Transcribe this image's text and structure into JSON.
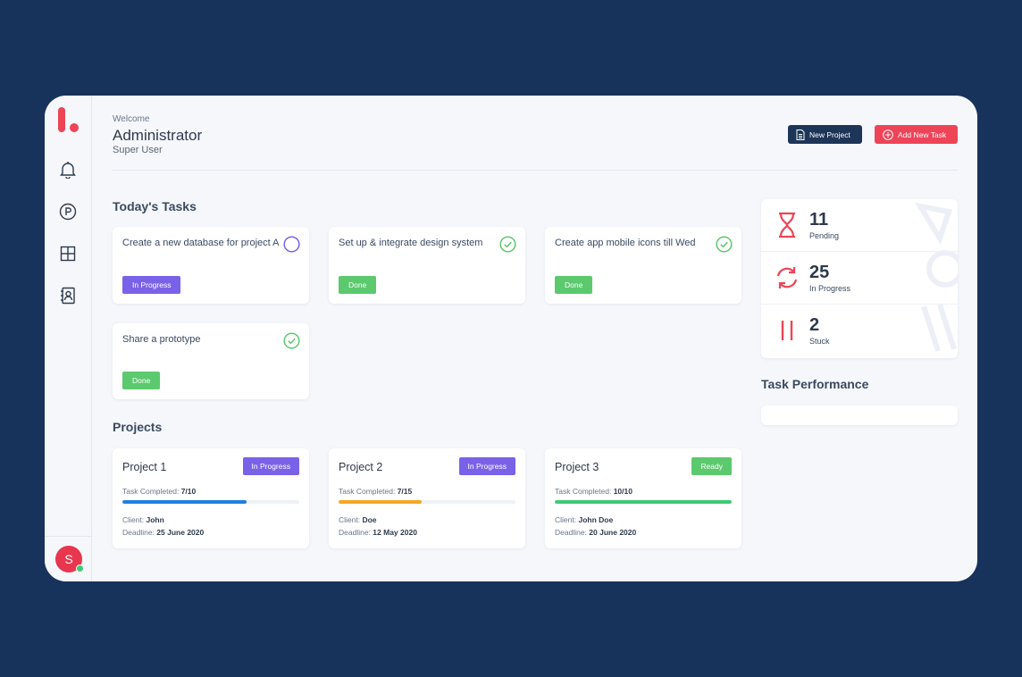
{
  "header": {
    "welcome": "Welcome",
    "user_name": "Administrator",
    "user_role": "Super User",
    "new_project_label": "New Project",
    "add_task_label": "Add New Task"
  },
  "sidebar": {
    "items": [
      {
        "icon": "bell-icon"
      },
      {
        "icon": "parking-circle-icon"
      },
      {
        "icon": "grid-icon"
      },
      {
        "icon": "contacts-book-icon"
      }
    ],
    "avatar_initial": "S"
  },
  "tasks": {
    "title": "Today's Tasks",
    "items": [
      {
        "title": "Create a new database for project A",
        "status": "In Progress"
      },
      {
        "title": "Set up & integrate design system",
        "status": "Done"
      },
      {
        "title": "Create app mobile icons till Wed",
        "status": "Done"
      },
      {
        "title": "Share a prototype",
        "status": "Done"
      }
    ]
  },
  "projects": {
    "title": "Projects",
    "task_completed_label": "Task Completed:",
    "client_label": "Client:",
    "deadline_label": "Deadline:",
    "items": [
      {
        "name": "Project 1",
        "status": "In Progress",
        "completed": "7/10",
        "progress": 0.7,
        "client": "John",
        "deadline": "25 June 2020",
        "color": "#1f7fe0"
      },
      {
        "name": "Project 2",
        "status": "In Progress",
        "completed": "7/15",
        "progress": 0.47,
        "client": "Doe",
        "deadline": "12 May 2020",
        "color": "#f5a623"
      },
      {
        "name": "Project 3",
        "status": "Ready",
        "completed": "10/10",
        "progress": 1.0,
        "client": "John Doe",
        "deadline": "20 June 2020",
        "color": "#3dcb74"
      }
    ]
  },
  "stats": [
    {
      "value": "11",
      "label": "Pending",
      "icon": "hourglass-icon"
    },
    {
      "value": "25",
      "label": "In Progress",
      "icon": "sync-icon"
    },
    {
      "value": "2",
      "label": "Stuck",
      "icon": "pause-icon"
    }
  ],
  "performance": {
    "title": "Task Performance"
  },
  "colors": {
    "brand": "#ee4458",
    "navy": "#1d3557",
    "purple": "#7a62e8",
    "green": "#5cc96e"
  }
}
